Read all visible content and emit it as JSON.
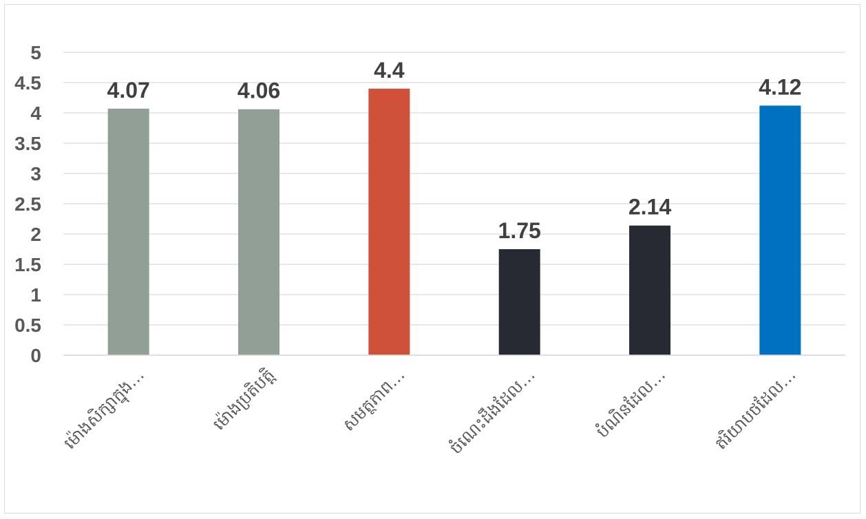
{
  "chart_data": {
    "type": "bar",
    "categories": [
      "ម៉ោងសិក្សាក្នុង…",
      "ម៉ោងប្រតិបត្តិ",
      "សមត្ថភាព…",
      "ចំណេះដឹងដែល…",
      "បំណិនដែល…",
      "ឥរិយាបថដែល…"
    ],
    "values": [
      4.07,
      4.06,
      4.4,
      1.75,
      2.14,
      4.12
    ],
    "data_labels": [
      "4.07",
      "4.06",
      "4.4",
      "1.75",
      "2.14",
      "4.12"
    ],
    "colors": [
      "#929f97",
      "#929f97",
      "#d0513a",
      "#282a33",
      "#282a33",
      "#0070c0"
    ],
    "ylim": [
      0,
      5
    ],
    "yticks": [
      0,
      0.5,
      1,
      1.5,
      2,
      2.5,
      3,
      3.5,
      4,
      4.5,
      5
    ],
    "ytick_labels": [
      "0",
      "0.5",
      "1",
      "1.5",
      "2",
      "2.5",
      "3",
      "3.5",
      "4",
      "4.5",
      "5"
    ],
    "grid": true,
    "legend": "none",
    "title": "",
    "xlabel": "",
    "ylabel": ""
  }
}
